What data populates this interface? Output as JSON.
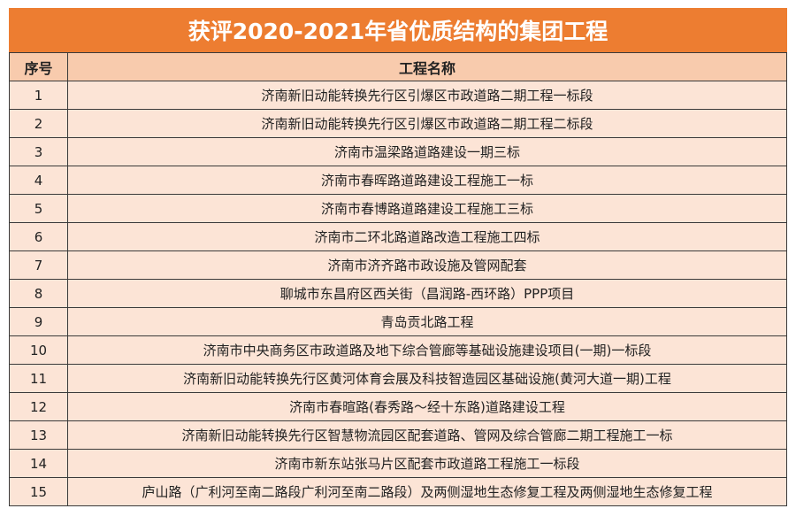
{
  "title": "获评2020-2021年省优质结构的集团工程",
  "headers": {
    "index": "序号",
    "name": "工程名称"
  },
  "colors": {
    "title_bg": "#ED7D31",
    "header_bg": "#F8CBAD",
    "row_bg": "#FCE4D6"
  },
  "rows": [
    {
      "no": "1",
      "name": "济南新旧动能转换先行区引爆区市政道路二期工程一标段"
    },
    {
      "no": "2",
      "name": "济南新旧动能转换先行区引爆区市政道路二期工程二标段"
    },
    {
      "no": "3",
      "name": "济南市温梁路道路建设一期三标"
    },
    {
      "no": "4",
      "name": "济南市春晖路道路建设工程施工一标"
    },
    {
      "no": "5",
      "name": "济南市春博路道路建设工程施工三标"
    },
    {
      "no": "6",
      "name": "济南市二环北路道路改造工程施工四标"
    },
    {
      "no": "7",
      "name": "济南市济齐路市政设施及管网配套"
    },
    {
      "no": "8",
      "name": "聊城市东昌府区西关街（昌润路-西环路）PPP项目"
    },
    {
      "no": "9",
      "name": "青岛贡北路工程"
    },
    {
      "no": "10",
      "name": "济南市中央商务区市政道路及地下综合管廊等基础设施建设项目(一期)一标段"
    },
    {
      "no": "11",
      "name": "济南新旧动能转换先行区黄河体育会展及科技智造园区基础设施(黄河大道一期)工程"
    },
    {
      "no": "12",
      "name": "济南市春暄路(春秀路～经十东路)道路建设工程"
    },
    {
      "no": "13",
      "name": "济南新旧动能转换先行区智慧物流园区配套道路、管网及综合管廊二期工程施工一标"
    },
    {
      "no": "14",
      "name": "济南市新东站张马片区配套市政道路工程施工一标段"
    },
    {
      "no": "15",
      "name": "庐山路（广利河至南二路段广利河至南二路段）及两侧湿地生态修复工程及两侧湿地生态修复工程"
    }
  ]
}
